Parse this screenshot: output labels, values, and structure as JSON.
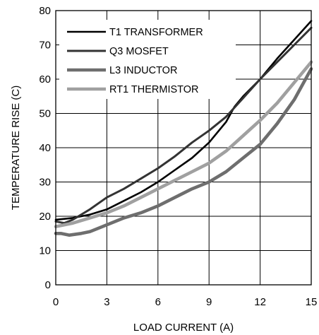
{
  "chart_data": {
    "type": "line",
    "title": "",
    "xlabel": "LOAD CURRENT (A)",
    "ylabel": "TEMPERATURE RISE (C)",
    "xlim": [
      0,
      15
    ],
    "ylim": [
      0,
      80
    ],
    "xticks": [
      0,
      3,
      6,
      9,
      12,
      15
    ],
    "yticks": [
      0,
      10,
      20,
      30,
      40,
      50,
      60,
      70,
      80
    ],
    "grid": true,
    "legend_position": "top-left",
    "series": [
      {
        "name": "T1 TRANSFORMER",
        "color": "#000000",
        "x": [
          0,
          1,
          2,
          3,
          4,
          5,
          6,
          7,
          8,
          9,
          10,
          10.5,
          11,
          12,
          13,
          14,
          15
        ],
        "y": [
          19,
          19.5,
          20.5,
          22,
          24.5,
          27,
          30,
          33.5,
          37,
          41.5,
          47.5,
          52,
          55,
          60,
          66,
          71.5,
          77
        ]
      },
      {
        "name": "Q3 MOSFET",
        "color": "#333333",
        "x": [
          0,
          0.5,
          1,
          2,
          3,
          4,
          5,
          6,
          7,
          8,
          9,
          10,
          11,
          12,
          13,
          14,
          15
        ],
        "y": [
          18.5,
          18,
          19,
          22,
          25.5,
          28,
          31,
          34,
          37.5,
          41.5,
          45,
          49,
          54.5,
          60,
          65,
          70,
          75
        ]
      },
      {
        "name": "L3 INDUCTOR",
        "color": "#6e6e6e",
        "x": [
          0,
          0.3,
          0.8,
          1.5,
          2,
          3,
          4,
          5,
          6,
          7,
          8,
          9,
          10,
          11,
          12,
          13,
          14,
          15
        ],
        "y": [
          15,
          15,
          14.5,
          15,
          15.5,
          17.5,
          19.5,
          21,
          23,
          25.5,
          28,
          30,
          33,
          37,
          41,
          47,
          54,
          63
        ]
      },
      {
        "name": "RT1 THERMISTOR",
        "color": "#a0a0a0",
        "x": [
          0,
          1,
          2,
          3,
          4,
          5,
          6,
          7,
          8,
          9,
          10,
          11,
          12,
          13,
          14,
          15
        ],
        "y": [
          17,
          18,
          19.5,
          21,
          23,
          25.5,
          28,
          30.5,
          33,
          35.5,
          39,
          43.5,
          48,
          53,
          59,
          65
        ]
      }
    ]
  }
}
